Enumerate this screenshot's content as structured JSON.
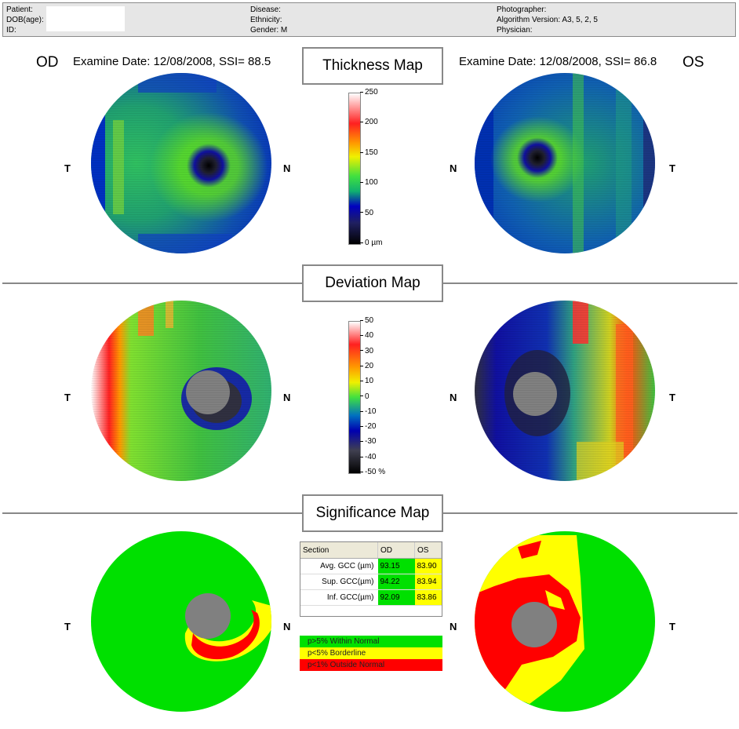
{
  "header": {
    "col1": [
      "Patient:",
      "DOB(age):",
      "ID:"
    ],
    "col2": [
      "Disease:",
      "Ethnicity:",
      "Gender: M"
    ],
    "col3": [
      "Photographer:",
      "Algorithm Version: A3, 5, 2, 5",
      "Physician:"
    ]
  },
  "od": {
    "label": "OD",
    "exam": "Examine Date: 12/08/2008, SSI= 88.5"
  },
  "os": {
    "label": "OS",
    "exam": "Examine Date: 12/08/2008, SSI= 86.8"
  },
  "sections": {
    "thickness": "Thickness Map",
    "deviation": "Deviation Map",
    "significance": "Significance Map"
  },
  "orient": {
    "t": "T",
    "n": "N"
  },
  "thickness_scale": [
    "250",
    "200",
    "150",
    "100",
    "50",
    "0 µm"
  ],
  "deviation_scale": [
    "50",
    "40",
    "30",
    "20",
    "10",
    "0",
    "-10",
    "-20",
    "-30",
    "-40",
    "-50 %"
  ],
  "gcc_table": {
    "headers": [
      "Section",
      "OD",
      "OS"
    ],
    "rows": [
      {
        "section": "Avg. GCC (µm)",
        "od": "93.15",
        "os": "83.90",
        "od_status": "normal",
        "os_status": "borderline"
      },
      {
        "section": "Sup. GCC(µm)",
        "od": "94.22",
        "os": "83.94",
        "od_status": "normal",
        "os_status": "borderline"
      },
      {
        "section": "Inf. GCC(µm)",
        "od": "92.09",
        "os": "83.86",
        "od_status": "normal",
        "os_status": "borderline"
      }
    ]
  },
  "legend": [
    {
      "label": "p>5% Within Normal",
      "color": "#00e000"
    },
    {
      "label": "p<5% Borderline",
      "color": "#ffff00"
    },
    {
      "label": "p<1% Outside Normal",
      "color": "#ff0000"
    }
  ],
  "colors": {
    "normal": "#00e000",
    "borderline": "#ffff00",
    "outside": "#ff0000",
    "disc": "#808080"
  }
}
